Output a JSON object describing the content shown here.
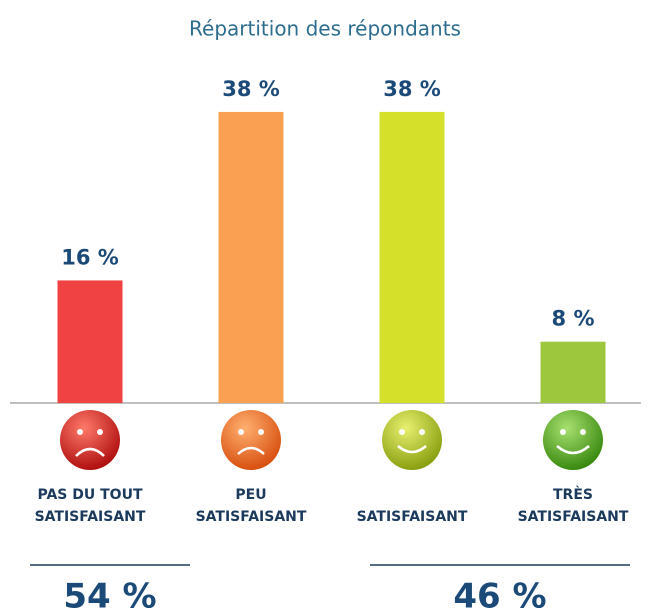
{
  "chart_data": {
    "type": "bar",
    "title": "Répartition des répondants",
    "categories": [
      "PAS DU TOUT\nSATISFAISANT",
      "PEU\nSATISFAISANT",
      "SATISFAISANT",
      "TRÈS\nSATISFAISANT"
    ],
    "values": [
      16,
      38,
      38,
      8
    ],
    "value_labels": [
      "16 %",
      "38 %",
      "38 %",
      "8 %"
    ],
    "colors": [
      "#f04242",
      "#f9a052",
      "#d5e02a",
      "#9dc83e"
    ],
    "totals": {
      "values": [
        54,
        46
      ],
      "value_labels": [
        "54 %",
        "46 %"
      ]
    }
  }
}
